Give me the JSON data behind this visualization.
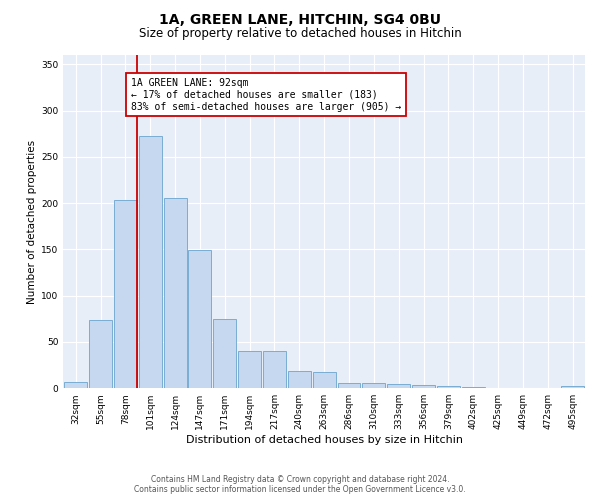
{
  "title": "1A, GREEN LANE, HITCHIN, SG4 0BU",
  "subtitle": "Size of property relative to detached houses in Hitchin",
  "xlabel": "Distribution of detached houses by size in Hitchin",
  "ylabel": "Number of detached properties",
  "bin_labels": [
    "32sqm",
    "55sqm",
    "78sqm",
    "101sqm",
    "124sqm",
    "147sqm",
    "171sqm",
    "194sqm",
    "217sqm",
    "240sqm",
    "263sqm",
    "286sqm",
    "310sqm",
    "333sqm",
    "356sqm",
    "379sqm",
    "402sqm",
    "425sqm",
    "449sqm",
    "472sqm",
    "495sqm"
  ],
  "bar_values": [
    7,
    74,
    203,
    272,
    205,
    149,
    75,
    40,
    40,
    19,
    18,
    6,
    6,
    5,
    4,
    2,
    1,
    0,
    0,
    0,
    2
  ],
  "bar_color": "#c5d8f0",
  "bar_edge_color": "#7aadd4",
  "vline_x": 2.45,
  "vline_color": "#cc0000",
  "annotation_text": "1A GREEN LANE: 92sqm\n← 17% of detached houses are smaller (183)\n83% of semi-detached houses are larger (905) →",
  "annotation_box_color": "#ffffff",
  "annotation_box_edge": "#cc0000",
  "ylim": [
    0,
    360
  ],
  "yticks": [
    0,
    50,
    100,
    150,
    200,
    250,
    300,
    350
  ],
  "footer_line1": "Contains HM Land Registry data © Crown copyright and database right 2024.",
  "footer_line2": "Contains public sector information licensed under the Open Government Licence v3.0.",
  "bg_color": "#ffffff",
  "plot_bg": "#e8eef8",
  "grid_color": "#ffffff",
  "title_fontsize": 10,
  "subtitle_fontsize": 8.5,
  "ylabel_fontsize": 7.5,
  "xlabel_fontsize": 8,
  "tick_fontsize": 6.5,
  "annot_fontsize": 7,
  "footer_fontsize": 5.5
}
